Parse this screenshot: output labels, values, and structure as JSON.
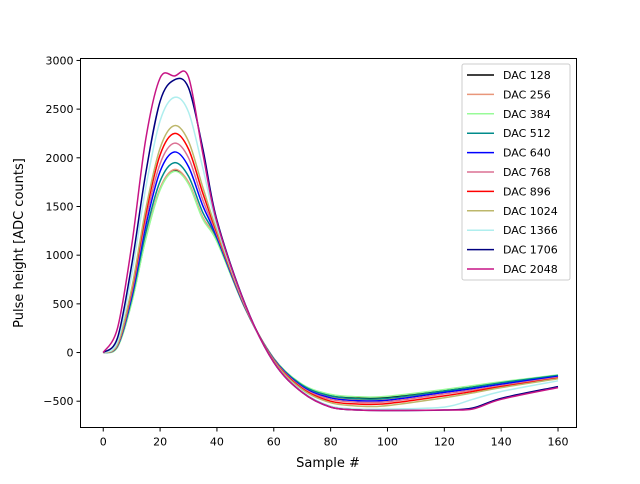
{
  "chart_data": {
    "type": "line",
    "title": "",
    "xlabel": "Sample #",
    "ylabel": "Pulse height [ADC counts]",
    "xlim": [
      -8,
      166.5
    ],
    "ylim": [
      -770,
      3020
    ],
    "xticks": [
      0,
      20,
      40,
      60,
      80,
      100,
      120,
      140,
      160
    ],
    "yticks": [
      -500,
      0,
      500,
      1000,
      1500,
      2000,
      2500,
      3000
    ],
    "grid": false,
    "legend_position": "top-right",
    "x": [
      0,
      5,
      10,
      15,
      20,
      25,
      30,
      35,
      40,
      50,
      60,
      70,
      80,
      90,
      100,
      120,
      130,
      140,
      160
    ],
    "series": [
      {
        "name": "DAC 128",
        "color": "#000000",
        "values": [
          0,
          60,
          520,
          1180,
          1680,
          1870,
          1740,
          1380,
          1150,
          450,
          -60,
          -330,
          -440,
          -465,
          -460,
          -390,
          -350,
          -310,
          -240
        ]
      },
      {
        "name": "DAC 256",
        "color": "#e9967a",
        "values": [
          0,
          60,
          530,
          1190,
          1690,
          1880,
          1750,
          1390,
          1160,
          455,
          -65,
          -340,
          -455,
          -480,
          -475,
          -400,
          -360,
          -320,
          -250
        ]
      },
      {
        "name": "DAC 384",
        "color": "#98fb98",
        "values": [
          0,
          55,
          510,
          1170,
          1670,
          1860,
          1730,
          1370,
          1140,
          445,
          -60,
          -325,
          -430,
          -455,
          -450,
          -380,
          -340,
          -300,
          -230
        ]
      },
      {
        "name": "DAC 512",
        "color": "#008b8b",
        "values": [
          0,
          65,
          550,
          1240,
          1760,
          1950,
          1810,
          1440,
          1170,
          450,
          -65,
          -335,
          -445,
          -475,
          -470,
          -395,
          -355,
          -310,
          -235
        ]
      },
      {
        "name": "DAC 640",
        "color": "#0000ff",
        "values": [
          0,
          70,
          580,
          1310,
          1860,
          2060,
          1910,
          1510,
          1190,
          455,
          -70,
          -350,
          -465,
          -495,
          -490,
          -410,
          -370,
          -325,
          -245
        ]
      },
      {
        "name": "DAC 768",
        "color": "#db7093",
        "values": [
          0,
          75,
          610,
          1370,
          1940,
          2150,
          2000,
          1570,
          1210,
          460,
          -75,
          -360,
          -480,
          -510,
          -505,
          -425,
          -385,
          -340,
          -255
        ]
      },
      {
        "name": "DAC 896",
        "color": "#ff0000",
        "values": [
          0,
          80,
          640,
          1430,
          2030,
          2250,
          2090,
          1640,
          1230,
          465,
          -80,
          -370,
          -500,
          -530,
          -525,
          -445,
          -400,
          -350,
          -265
        ]
      },
      {
        "name": "DAC 1024",
        "color": "#bdb76b",
        "values": [
          0,
          85,
          660,
          1480,
          2100,
          2330,
          2170,
          1700,
          1250,
          470,
          -85,
          -380,
          -515,
          -550,
          -545,
          -465,
          -415,
          -360,
          -270
        ]
      },
      {
        "name": "DAC 1366",
        "color": "#afeeee",
        "values": [
          0,
          110,
          800,
          1700,
          2380,
          2620,
          2470,
          1900,
          1300,
          480,
          -100,
          -400,
          -550,
          -580,
          -580,
          -560,
          -480,
          -400,
          -290
        ]
      },
      {
        "name": "DAC 1706",
        "color": "#000080",
        "values": [
          0,
          150,
          900,
          1850,
          2580,
          2800,
          2720,
          2100,
          1360,
          490,
          -100,
          -410,
          -560,
          -590,
          -595,
          -590,
          -570,
          -470,
          -350
        ]
      },
      {
        "name": "DAC 2048",
        "color": "#c71585",
        "values": [
          0,
          250,
          1100,
          2200,
          2820,
          2840,
          2830,
          2050,
          1340,
          485,
          -100,
          -410,
          -560,
          -590,
          -595,
          -590,
          -580,
          -480,
          -360
        ]
      }
    ]
  }
}
